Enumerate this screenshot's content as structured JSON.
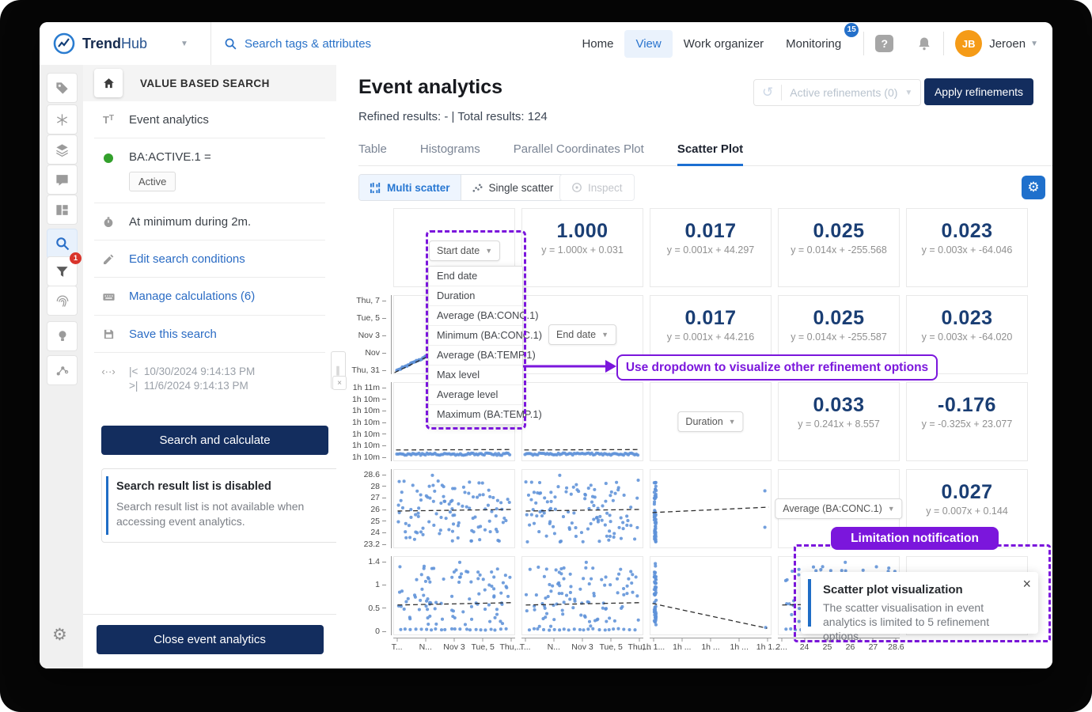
{
  "navbar": {
    "brand_bold": "Trend",
    "brand_light": "Hub",
    "search_placeholder": "Search tags & attributes",
    "items": [
      "Home",
      "View",
      "Work organizer",
      "Monitoring"
    ],
    "monitoring_badge": "15",
    "help_glyph": "?",
    "user": {
      "initials": "JB",
      "name": "Jeroen"
    }
  },
  "rail": {
    "funnel_badge": "1",
    "icons": [
      "tag-icon",
      "calculations-icon",
      "layers-icon",
      "comment-icon",
      "dashboard-icon",
      "search-icon",
      "funnel-icon",
      "fingerprint-icon",
      "lightbulb-icon",
      "graph-nodes-icon",
      "gear-icon"
    ]
  },
  "sidebar": {
    "header": "VALUE BASED SEARCH",
    "event_item": "Event analytics",
    "condition_tag": "BA:ACTIVE.1 =",
    "condition_value": "Active",
    "duration_item": "At minimum during 2m.",
    "edit_link": "Edit search conditions",
    "manage_link": "Manage calculations (6)",
    "save_link": "Save this search",
    "date_from_marker": "|<",
    "date_to_marker": ">|",
    "date_from": "10/30/2024 9:14:13 PM",
    "date_to": "11/6/2024 9:14:13 PM",
    "search_button": "Search and calculate",
    "info_title": "Search result list is disabled",
    "info_body": "Search result list is not available when accessing event analytics.",
    "close_button": "Close event analytics"
  },
  "main": {
    "title": "Event analytics",
    "refinements_label": "Active refinements (0)",
    "apply_button": "Apply refinements",
    "results_line": "Refined results: - | Total results: 124",
    "tabs": [
      "Table",
      "Histograms",
      "Parallel Coordinates Plot",
      "Scatter Plot"
    ],
    "active_tab": "Scatter Plot",
    "toolbar": {
      "multi": "Multi scatter",
      "single": "Single scatter",
      "inspect": "Inspect"
    }
  },
  "chart_data": {
    "type": "scatter",
    "subtype": "scatter-matrix",
    "variables": [
      "Start date",
      "End date",
      "Duration",
      "Average (BA:CONC.1)"
    ],
    "dropdown_menu": {
      "open_for": "Start date",
      "items": [
        "End date",
        "Duration",
        "Average (BA:CONC.1)",
        "Minimum (BA:CONC.1)",
        "Average (BA:TEMP.1)",
        "Max level",
        "Average level",
        "Maximum (BA:TEMP.1)"
      ]
    },
    "row_axis_labels": [
      [],
      [
        "Thu, 7",
        "Tue, 5",
        "Nov 3",
        "Nov",
        "Thu, 31"
      ],
      [
        "1h 11m",
        "1h 10m",
        "1h 10m",
        "1h 10m",
        "1h 10m",
        "1h 10m",
        "1h 10m"
      ],
      [
        "28.6",
        "28",
        "27",
        "26",
        "25",
        "24",
        "23.2"
      ],
      [
        "1.4",
        "1",
        "0.5",
        "0"
      ]
    ],
    "col_axis_labels": [
      [
        "T...",
        "N...",
        "Nov 3",
        "Tue, 5",
        "Thu,..."
      ],
      [
        "T...",
        "N...",
        "Nov 3",
        "Tue, 5",
        "Thu,..."
      ],
      [
        "1h 1...",
        "1h ...",
        "1h ...",
        "1h ...",
        "1h 1..."
      ],
      [
        "2...",
        "24",
        "25",
        "26",
        "27",
        "28.6"
      ],
      []
    ],
    "cells": [
      [
        {
          "t": "drop",
          "label": "Start date",
          "open": true
        },
        {
          "t": "corr",
          "v": "1.000",
          "eq": "y = 1.000x + 0.031"
        },
        {
          "t": "corr",
          "v": "0.017",
          "eq": "y = 0.001x + 44.297"
        },
        {
          "t": "corr",
          "v": "0.025",
          "eq": "y = 0.014x + -255.568"
        },
        {
          "t": "corr",
          "v": "0.023",
          "eq": "y = 0.003x + -64.046"
        }
      ],
      [
        {
          "t": "scatter",
          "kind": "diag",
          "seed": 11
        },
        {
          "t": "drop",
          "label": "End date"
        },
        {
          "t": "corr",
          "v": "0.017",
          "eq": "y = 0.001x + 44.216"
        },
        {
          "t": "corr",
          "v": "0.025",
          "eq": "y = 0.014x + -255.587"
        },
        {
          "t": "corr",
          "v": "0.023",
          "eq": "y = 0.003x + -64.020"
        }
      ],
      [
        {
          "t": "scatter",
          "kind": "flat",
          "seed": 21
        },
        {
          "t": "scatter",
          "kind": "flat",
          "seed": 22
        },
        {
          "t": "drop",
          "label": "Duration"
        },
        {
          "t": "corr",
          "v": "0.033",
          "eq": "y = 0.241x + 8.557"
        },
        {
          "t": "corr",
          "v": "-0.176",
          "eq": "y = -0.325x + 23.077"
        }
      ],
      [
        {
          "t": "scatter",
          "kind": "cloud",
          "seed": 31
        },
        {
          "t": "scatter",
          "kind": "cloud",
          "seed": 32
        },
        {
          "t": "scatter",
          "kind": "vup",
          "seed": 33
        },
        {
          "t": "drop",
          "label": "Average (BA:CONC.1)"
        },
        {
          "t": "corr",
          "v": "0.027",
          "eq": "y = 0.007x + 0.144"
        }
      ],
      [
        {
          "t": "scatter",
          "kind": "cloudb",
          "seed": 41
        },
        {
          "t": "scatter",
          "kind": "cloudb",
          "seed": 42
        },
        {
          "t": "scatter",
          "kind": "vdown",
          "seed": 43
        },
        {
          "t": "scatter",
          "kind": "cloudb",
          "seed": 44
        },
        {
          "t": "empty"
        }
      ]
    ],
    "point_color": "#5f92d8",
    "trendline_style": "dashed-black"
  },
  "annotations": {
    "dropdown_callout": "Use dropdown to visualize other refinement options",
    "limitation_label": "Limitation notification",
    "notification": {
      "title": "Scatter plot visualization",
      "body": "The scatter visualisation in event analytics is limited to 5 refinement options.",
      "close_glyph": "×"
    },
    "accent_purple": "#7b16dc"
  },
  "colors": {
    "navy": "#132d5e",
    "accent_blue": "#2a72c8",
    "badge_red": "#d9342b",
    "avatar_orange": "#f59b17",
    "status_green": "#33a02c"
  }
}
